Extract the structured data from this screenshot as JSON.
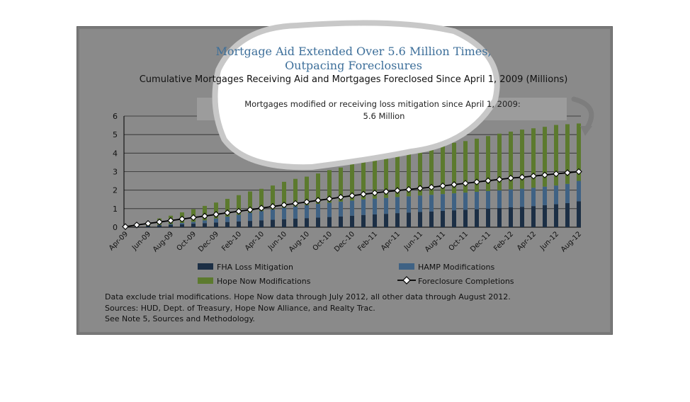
{
  "chart_data": {
    "type": "bar",
    "title_line1": "Mortgage Aid Extended Over 5.6 Million Times,",
    "title_line2": "Outpacing Foreclosures",
    "subtitle": "Cumulative Mortgages Receiving Aid and Mortgages Foreclosed Since April 1, 2009 (Millions)",
    "callout_line1": "Mortgages modified or receiving loss mitigation since April 1, 2009:",
    "callout_line2": "5.6 Million",
    "ylim": [
      0,
      6
    ],
    "y_ticks": [
      "0",
      "1",
      "2",
      "3",
      "4",
      "5",
      "6"
    ],
    "categories": [
      "Apr-09",
      "May-09",
      "Jun-09",
      "Jul-09",
      "Aug-09",
      "Sep-09",
      "Oct-09",
      "Nov-09",
      "Dec-09",
      "Jan-10",
      "Feb-10",
      "Mar-10",
      "Apr-10",
      "May-10",
      "Jun-10",
      "Jul-10",
      "Aug-10",
      "Sep-10",
      "Oct-10",
      "Nov-10",
      "Dec-10",
      "Jan-11",
      "Feb-11",
      "Mar-11",
      "Apr-11",
      "May-11",
      "Jun-11",
      "Jul-11",
      "Aug-11",
      "Sep-11",
      "Oct-11",
      "Nov-11",
      "Dec-11",
      "Jan-12",
      "Feb-12",
      "Mar-12",
      "Apr-12",
      "May-12",
      "Jun-12",
      "Jul-12",
      "Aug-12"
    ],
    "x_tick_labels": [
      "Apr-09",
      "Jun-09",
      "Aug-09",
      "Oct-09",
      "Dec-09",
      "Feb-10",
      "Apr-10",
      "Jun-10",
      "Aug-10",
      "Oct-10",
      "Dec-10",
      "Feb-11",
      "Apr-11",
      "Jun-11",
      "Aug-11",
      "Oct-11",
      "Dec-11",
      "Feb-12",
      "Apr-12",
      "Jun-12",
      "Aug-12"
    ],
    "series": [
      {
        "name": "FHA Loss Mitigation",
        "kind": "bar",
        "color": "#1c2f45",
        "values": [
          0.02,
          0.05,
          0.08,
          0.1,
          0.13,
          0.16,
          0.19,
          0.22,
          0.25,
          0.28,
          0.31,
          0.34,
          0.37,
          0.4,
          0.43,
          0.46,
          0.49,
          0.52,
          0.55,
          0.58,
          0.62,
          0.66,
          0.69,
          0.72,
          0.76,
          0.79,
          0.82,
          0.85,
          0.88,
          0.91,
          0.94,
          0.97,
          1.0,
          1.03,
          1.07,
          1.1,
          1.14,
          1.19,
          1.24,
          1.3,
          1.4
        ]
      },
      {
        "name": "HAMP Modifications",
        "kind": "bar",
        "color": "#3f6284",
        "values": [
          0.0,
          0.0,
          0.0,
          0.02,
          0.04,
          0.07,
          0.1,
          0.15,
          0.22,
          0.29,
          0.36,
          0.44,
          0.5,
          0.56,
          0.62,
          0.66,
          0.7,
          0.74,
          0.77,
          0.8,
          0.82,
          0.84,
          0.85,
          0.86,
          0.87,
          0.88,
          0.89,
          0.9,
          0.91,
          0.92,
          0.93,
          0.94,
          0.95,
          0.96,
          0.97,
          0.98,
          0.99,
          1.0,
          1.01,
          1.04,
          1.1
        ]
      },
      {
        "name": "Hope Now Modifications",
        "kind": "bar",
        "color": "#5c7a2e",
        "values": [
          0.04,
          0.1,
          0.2,
          0.35,
          0.45,
          0.57,
          0.68,
          0.78,
          0.86,
          0.96,
          1.06,
          1.15,
          1.2,
          1.29,
          1.4,
          1.49,
          1.54,
          1.64,
          1.76,
          1.84,
          1.96,
          2.04,
          2.18,
          2.23,
          2.3,
          2.39,
          2.46,
          2.58,
          2.66,
          2.73,
          2.78,
          2.87,
          2.97,
          3.06,
          3.12,
          3.19,
          3.21,
          3.23,
          3.27,
          3.22,
          3.1
        ]
      },
      {
        "name": "Foreclosure Completions",
        "kind": "line",
        "color": "#000000",
        "values": [
          0.03,
          0.12,
          0.2,
          0.28,
          0.36,
          0.44,
          0.52,
          0.6,
          0.69,
          0.78,
          0.86,
          0.94,
          1.03,
          1.12,
          1.2,
          1.28,
          1.36,
          1.45,
          1.53,
          1.62,
          1.7,
          1.78,
          1.85,
          1.92,
          1.98,
          2.04,
          2.1,
          2.16,
          2.23,
          2.3,
          2.37,
          2.44,
          2.51,
          2.58,
          2.65,
          2.7,
          2.76,
          2.82,
          2.88,
          2.94,
          3.0
        ]
      }
    ],
    "legend_placement": "bottom",
    "grid": true,
    "notes": [
      "Data exclude trial modifications. Hope Now data through July 2012, all other data through August 2012.",
      "Sources:  HUD, Dept. of Treasury, Hope Now Alliance, and Realty Trac.",
      "See Note 5, Sources and Methodology."
    ]
  },
  "colors": {
    "frame": "#7a7a7a",
    "panel": "#8a8a8a",
    "title": "#3d6f9a",
    "highlight_blob": "#ffffff",
    "callout_box": "#9c9c9c"
  }
}
